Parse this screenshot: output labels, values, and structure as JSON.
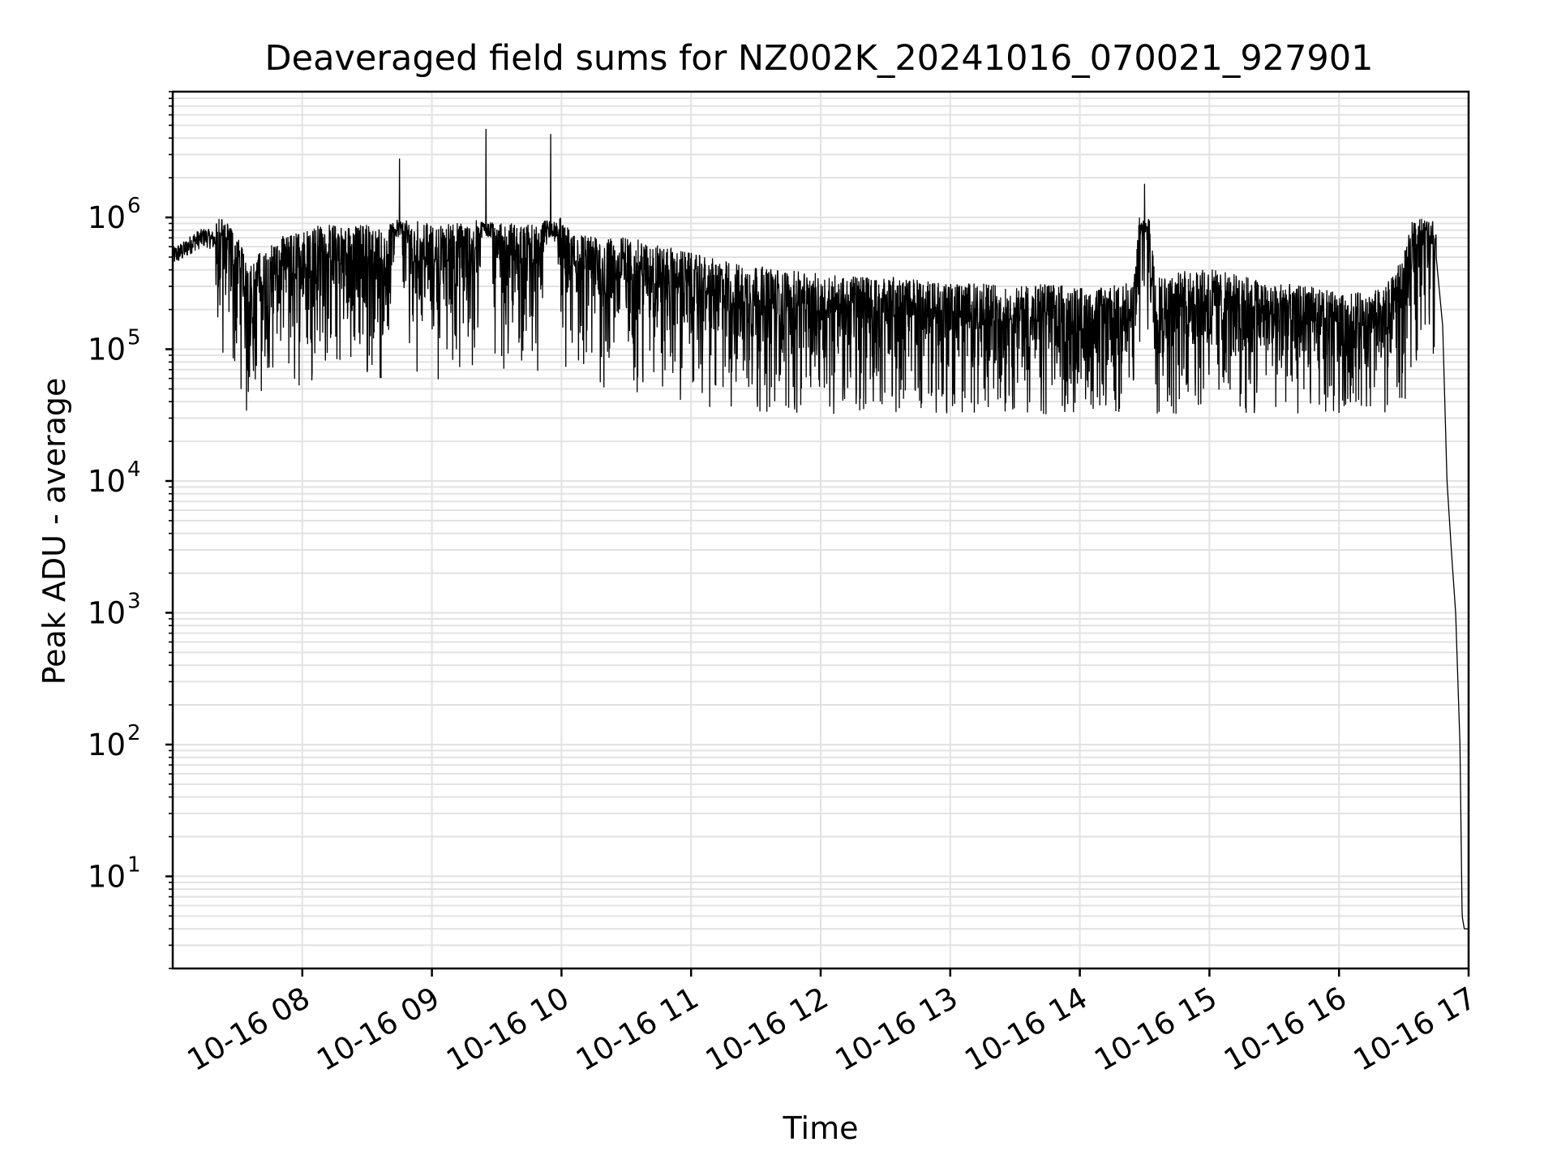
{
  "chart_data": {
    "type": "line",
    "title": "Deaveraged field sums for NZ002K_20241016_070021_927901",
    "xlabel": "Time",
    "ylabel": "Peak ADU - average",
    "yscale": "log",
    "ylim": [
      2.0,
      9000000
    ],
    "xlim": [
      "10-16 07:00",
      "10-16 17:00"
    ],
    "x_ticks": [
      "10-16 08",
      "10-16 09",
      "10-16 10",
      "10-16 11",
      "10-16 12",
      "10-16 13",
      "10-16 14",
      "10-16 15",
      "10-16 16",
      "10-16 17"
    ],
    "y_ticks": [
      {
        "base": "10",
        "exp": "1"
      },
      {
        "base": "10",
        "exp": "2"
      },
      {
        "base": "10",
        "exp": "3"
      },
      {
        "base": "10",
        "exp": "4"
      },
      {
        "base": "10",
        "exp": "5"
      },
      {
        "base": "10",
        "exp": "6"
      }
    ],
    "grid": true,
    "line_color": "#000000",
    "series": [
      {
        "x": [
          "10-16 07:00",
          "10-16 07:05",
          "10-16 07:10",
          "10-16 07:15",
          "10-16 07:20",
          "10-16 07:25",
          "10-16 07:30",
          "10-16 07:35",
          "10-16 07:40",
          "10-16 07:45",
          "10-16 07:50",
          "10-16 07:55",
          "10-16 08:00",
          "10-16 08:10",
          "10-16 08:20",
          "10-16 08:30",
          "10-16 08:40",
          "10-16 08:45",
          "10-16 08:50",
          "10-16 09:00",
          "10-16 09:10",
          "10-16 09:20",
          "10-16 09:25",
          "10-16 09:30",
          "10-16 09:40",
          "10-16 09:50",
          "10-16 09:55",
          "10-16 10:00",
          "10-16 10:10",
          "10-16 10:20",
          "10-16 10:30",
          "10-16 10:40",
          "10-16 10:50",
          "10-16 11:00",
          "10-16 11:15",
          "10-16 11:30",
          "10-16 11:45",
          "10-16 12:00",
          "10-16 12:15",
          "10-16 12:30",
          "10-16 12:45",
          "10-16 13:00",
          "10-16 13:15",
          "10-16 13:30",
          "10-16 13:45",
          "10-16 14:00",
          "10-16 14:15",
          "10-16 14:25",
          "10-16 14:30",
          "10-16 14:35",
          "10-16 14:40",
          "10-16 14:50",
          "10-16 15:00",
          "10-16 15:15",
          "10-16 15:30",
          "10-16 15:45",
          "10-16 16:00",
          "10-16 16:10",
          "10-16 16:20",
          "10-16 16:25",
          "10-16 16:30",
          "10-16 16:35",
          "10-16 16:38",
          "10-16 16:40",
          "10-16 16:42",
          "10-16 16:45",
          "10-16 16:48",
          "10-16 16:50",
          "10-16 16:52",
          "10-16 16:54",
          "10-16 16:56",
          "10-16 16:57",
          "10-16 16:58",
          "10-16 17:00"
        ],
        "y": [
          500000,
          550000,
          650000,
          700000,
          650000,
          600000,
          400000,
          250000,
          300000,
          350000,
          400000,
          420000,
          450000,
          500000,
          480000,
          500000,
          450000,
          2800000,
          600000,
          480000,
          520000,
          500000,
          4700000,
          500000,
          520000,
          480000,
          4300000,
          500000,
          420000,
          380000,
          400000,
          360000,
          330000,
          300000,
          260000,
          240000,
          220000,
          210000,
          200000,
          200000,
          190000,
          180000,
          175000,
          170000,
          175000,
          165000,
          170000,
          180000,
          1800000,
          200000,
          210000,
          220000,
          230000,
          200000,
          180000,
          170000,
          150000,
          150000,
          160000,
          200000,
          300000,
          600000,
          900000,
          1000000,
          800000,
          500000,
          150000,
          10000,
          3000,
          1000,
          100,
          5,
          4,
          4
        ]
      }
    ]
  }
}
